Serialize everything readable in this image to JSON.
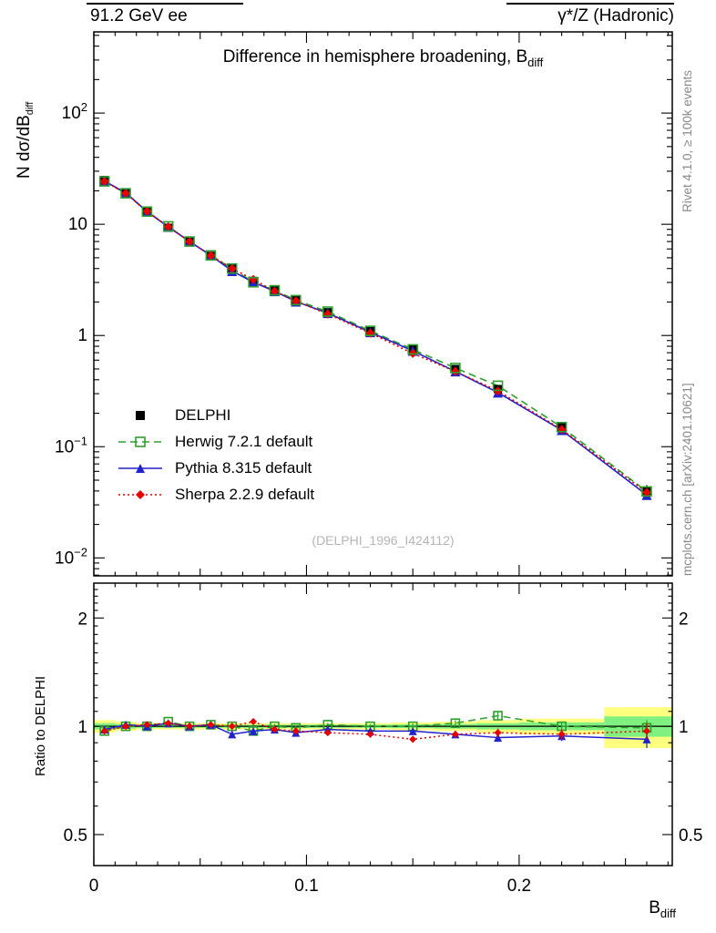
{
  "header": {
    "left": "91.2 GeV ee",
    "right": "γ*/Z (Hadronic)"
  },
  "title": {
    "text": "Difference in hemisphere broadening, B",
    "sub": "diff"
  },
  "ylabel": {
    "text": "N dσ/dB",
    "sub": "diff"
  },
  "xlabel": {
    "text": "B",
    "sub": "diff"
  },
  "ratio_label": "Ratio to DELPHI",
  "watermark": "(DELPHI_1996_I424112)",
  "side_notes": {
    "top_right": "Rivet 4.1.0, ≥ 100k events",
    "bottom_right": "mcplots.cern.ch [arXiv:2401.10621]"
  },
  "chart_data": {
    "type": "line",
    "title": "Difference in hemisphere broadening, B_diff",
    "xlabel": "B_diff",
    "ylabel": "N dσ/dB_diff",
    "ratio_ylabel": "Ratio to DELPHI",
    "legend_position": "middle-left",
    "axes": {
      "xlim": [
        0,
        0.272
      ],
      "yscale": "log",
      "ylim": [
        0.0069,
        537
      ],
      "x_ticks_labeled": [
        0,
        0.1,
        0.2
      ],
      "y_ticks_labeled": [
        0.01,
        0.1,
        1,
        10,
        100
      ],
      "ratio_yscale": "log",
      "ratio_ylim": [
        0.41,
        2.5
      ],
      "ratio_ticks_labeled": [
        0.5,
        1,
        2
      ]
    },
    "x_bin_edges": [
      0,
      0.01,
      0.02,
      0.03,
      0.04,
      0.05,
      0.06,
      0.07,
      0.08,
      0.09,
      0.1,
      0.12,
      0.14,
      0.16,
      0.18,
      0.2,
      0.24,
      0.28
    ],
    "x": [
      0.005,
      0.015,
      0.025,
      0.035,
      0.045,
      0.055,
      0.065,
      0.075,
      0.085,
      0.095,
      0.11,
      0.13,
      0.15,
      0.17,
      0.19,
      0.22,
      0.26
    ],
    "series": [
      {
        "name": "DELPHI",
        "color": "#000000",
        "marker": "square-filled",
        "line": "none",
        "values": [
          25.0,
          19.0,
          13.0,
          9.3,
          7.0,
          5.2,
          4.0,
          3.1,
          2.55,
          2.1,
          1.62,
          1.1,
          0.75,
          0.5,
          0.33,
          0.15,
          0.04
        ]
      },
      {
        "name": "Herwig 7.2.1 default",
        "color": "#2ca02c",
        "marker": "square-open",
        "line": "dashed",
        "values": [
          24.3,
          19.0,
          13.0,
          9.58,
          7.0,
          5.25,
          4.0,
          3.01,
          2.55,
          2.08,
          1.64,
          1.1,
          0.75,
          0.51,
          0.353,
          0.15,
          0.0396
        ],
        "ratio": [
          0.97,
          1.0,
          1.0,
          1.03,
          1.0,
          1.01,
          1.0,
          0.97,
          1.0,
          0.99,
          1.01,
          1.0,
          1.0,
          1.02,
          1.07,
          1.0,
          0.99
        ]
      },
      {
        "name": "Pythia 8.315 default",
        "color": "#2222cc",
        "marker": "triangle-filled",
        "line": "solid",
        "values": [
          24.5,
          19.2,
          13.0,
          9.49,
          7.0,
          5.25,
          3.8,
          3.01,
          2.5,
          2.02,
          1.59,
          1.07,
          0.728,
          0.475,
          0.307,
          0.141,
          0.0368
        ],
        "ratio": [
          0.98,
          1.01,
          1.0,
          1.02,
          1.0,
          1.01,
          0.95,
          0.97,
          0.98,
          0.96,
          0.98,
          0.97,
          0.97,
          0.95,
          0.93,
          0.94,
          0.92
        ]
      },
      {
        "name": "Sherpa 2.2.9 default",
        "color": "#e60000",
        "marker": "diamond-filled",
        "line": "dotted",
        "values": [
          24.3,
          19.0,
          13.1,
          9.49,
          7.0,
          5.25,
          4.0,
          3.19,
          2.5,
          2.04,
          1.56,
          1.05,
          0.69,
          0.475,
          0.317,
          0.143,
          0.0388
        ],
        "ratio": [
          0.97,
          1.0,
          1.01,
          1.02,
          1.0,
          1.01,
          1.0,
          1.03,
          0.98,
          0.97,
          0.96,
          0.95,
          0.92,
          0.95,
          0.96,
          0.95,
          0.97
        ]
      }
    ],
    "ratio_err": [
      0.015,
      0.012,
      0.012,
      0.012,
      0.012,
      0.012,
      0.012,
      0.015,
      0.015,
      0.015,
      0.012,
      0.015,
      0.018,
      0.02,
      0.025,
      0.03,
      0.05
    ],
    "band_yellow_halfwidth": [
      0.04,
      0.03,
      0.02,
      0.02,
      0.02,
      0.02,
      0.02,
      0.02,
      0.02,
      0.02,
      0.02,
      0.02,
      0.025,
      0.03,
      0.04,
      0.05,
      0.13
    ],
    "band_green_halfwidth": [
      0.02,
      0.015,
      0.01,
      0.01,
      0.01,
      0.01,
      0.01,
      0.01,
      0.01,
      0.01,
      0.01,
      0.01,
      0.012,
      0.015,
      0.02,
      0.025,
      0.065
    ],
    "colors": {
      "band_yellow": "#ffff80",
      "band_green": "#80f080",
      "reference_line": "#000000"
    }
  }
}
